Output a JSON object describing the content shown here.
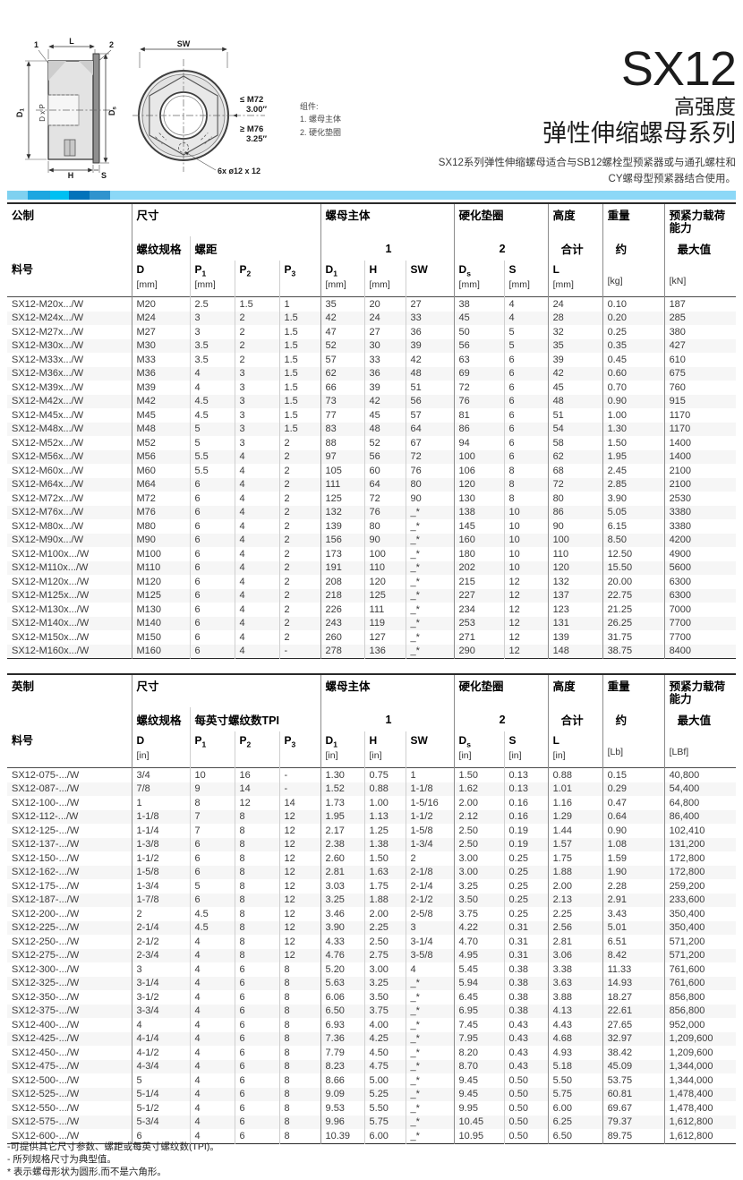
{
  "header": {
    "product": "SX12",
    "subtitle1": "高强度",
    "subtitle2": "弹性伸缩螺母系列",
    "desc_line1": "SX12系列弹性伸缩螺母适合与SB12螺栓型预紧器或与通孔螺柱和",
    "desc_line2": "CY螺母型预紧器结合使用。"
  },
  "drawings": {
    "legend_title": "组件:",
    "legend_item1": "1. 螺母主体",
    "legend_item2": "2. 硬化垫圈",
    "side": {
      "dim_l": "L",
      "callout1": "1",
      "callout2": "2",
      "dim_d1_main": "D",
      "dim_d1_sub": "1",
      "dim_dxp": "D x P",
      "dim_ds_main": "D",
      "dim_ds_sub": "s",
      "dim_h": "H",
      "dim_s": "S"
    },
    "front": {
      "dim_sw": "SW",
      "size_note1": "≤ M72",
      "size_note1_in": "3.00″",
      "size_note2": "≥ M76",
      "size_note2_in": "3.25″",
      "holes": "6x ø12 x 12"
    }
  },
  "accent": {
    "bar_colors": [
      "#7fd1f0",
      "#1ea6e0",
      "#00c0f2",
      "#0272ba",
      "#2f93ce",
      "#8cd8f7"
    ]
  },
  "metric": {
    "title": "公制",
    "col_group_dim": "尺寸",
    "col_thread": "螺纹规格",
    "col_pitch": "螺距",
    "group_nut": "螺母主体",
    "group_nut_num": "1",
    "group_washer": "硬化垫圈",
    "group_washer_num": "2",
    "group_height": "高度",
    "group_height_sub": "合计",
    "group_weight": "重量",
    "group_weight_sub": "约",
    "group_preload": "预紧力载荷能力",
    "group_preload_sub": "最大值",
    "part_no_label": "料号",
    "cols": [
      {
        "sym": "D",
        "sub": "",
        "unit": "[mm]"
      },
      {
        "sym": "P",
        "sub": "1",
        "unit": "[mm]"
      },
      {
        "sym": "P",
        "sub": "2",
        "unit": ""
      },
      {
        "sym": "P",
        "sub": "3",
        "unit": ""
      },
      {
        "sym": "D",
        "sub": "1",
        "unit": "[mm]"
      },
      {
        "sym": "H",
        "sub": "",
        "unit": "[mm]"
      },
      {
        "sym": "SW",
        "sub": "",
        "unit": ""
      },
      {
        "sym": "D",
        "sub": "s",
        "unit": "[mm]"
      },
      {
        "sym": "S",
        "sub": "",
        "unit": "[mm]"
      },
      {
        "sym": "L",
        "sub": "",
        "unit": "[mm]"
      },
      {
        "sym": "",
        "sub": "",
        "unit": "[kg]"
      },
      {
        "sym": "",
        "sub": "",
        "unit": "[kN]"
      }
    ],
    "rows": [
      [
        "SX12-M20x.../W",
        "M20",
        "2.5",
        "1.5",
        "1",
        "35",
        "20",
        "27",
        "38",
        "4",
        "24",
        "0.10",
        "187"
      ],
      [
        "SX12-M24x.../W",
        "M24",
        "3",
        "2",
        "1.5",
        "42",
        "24",
        "33",
        "45",
        "4",
        "28",
        "0.20",
        "285"
      ],
      [
        "SX12-M27x.../W",
        "M27",
        "3",
        "2",
        "1.5",
        "47",
        "27",
        "36",
        "50",
        "5",
        "32",
        "0.25",
        "380"
      ],
      [
        "SX12-M30x.../W",
        "M30",
        "3.5",
        "2",
        "1.5",
        "52",
        "30",
        "39",
        "56",
        "5",
        "35",
        "0.35",
        "427"
      ],
      [
        "SX12-M33x.../W",
        "M33",
        "3.5",
        "2",
        "1.5",
        "57",
        "33",
        "42",
        "63",
        "6",
        "39",
        "0.45",
        "610"
      ],
      [
        "SX12-M36x.../W",
        "M36",
        "4",
        "3",
        "1.5",
        "62",
        "36",
        "48",
        "69",
        "6",
        "42",
        "0.60",
        "675"
      ],
      [
        "SX12-M39x.../W",
        "M39",
        "4",
        "3",
        "1.5",
        "66",
        "39",
        "51",
        "72",
        "6",
        "45",
        "0.70",
        "760"
      ],
      [
        "SX12-M42x.../W",
        "M42",
        "4.5",
        "3",
        "1.5",
        "73",
        "42",
        "56",
        "76",
        "6",
        "48",
        "0.90",
        "915"
      ],
      [
        "SX12-M45x.../W",
        "M45",
        "4.5",
        "3",
        "1.5",
        "77",
        "45",
        "57",
        "81",
        "6",
        "51",
        "1.00",
        "1170"
      ],
      [
        "SX12-M48x.../W",
        "M48",
        "5",
        "3",
        "1.5",
        "83",
        "48",
        "64",
        "86",
        "6",
        "54",
        "1.30",
        "1170"
      ],
      [
        "SX12-M52x.../W",
        "M52",
        "5",
        "3",
        "2",
        "88",
        "52",
        "67",
        "94",
        "6",
        "58",
        "1.50",
        "1400"
      ],
      [
        "SX12-M56x.../W",
        "M56",
        "5.5",
        "4",
        "2",
        "97",
        "56",
        "72",
        "100",
        "6",
        "62",
        "1.95",
        "1400"
      ],
      [
        "SX12-M60x.../W",
        "M60",
        "5.5",
        "4",
        "2",
        "105",
        "60",
        "76",
        "106",
        "8",
        "68",
        "2.45",
        "2100"
      ],
      [
        "SX12-M64x.../W",
        "M64",
        "6",
        "4",
        "2",
        "111",
        "64",
        "80",
        "120",
        "8",
        "72",
        "2.85",
        "2100"
      ],
      [
        "SX12-M72x.../W",
        "M72",
        "6",
        "4",
        "2",
        "125",
        "72",
        "90",
        "130",
        "8",
        "80",
        "3.90",
        "2530"
      ],
      [
        "SX12-M76x.../W",
        "M76",
        "6",
        "4",
        "2",
        "132",
        "76",
        "_*",
        "138",
        "10",
        "86",
        "5.05",
        "3380"
      ],
      [
        "SX12-M80x.../W",
        "M80",
        "6",
        "4",
        "2",
        "139",
        "80",
        "_*",
        "145",
        "10",
        "90",
        "6.15",
        "3380"
      ],
      [
        "SX12-M90x.../W",
        "M90",
        "6",
        "4",
        "2",
        "156",
        "90",
        "_*",
        "160",
        "10",
        "100",
        "8.50",
        "4200"
      ],
      [
        "SX12-M100x.../W",
        "M100",
        "6",
        "4",
        "2",
        "173",
        "100",
        "_*",
        "180",
        "10",
        "110",
        "12.50",
        "4900"
      ],
      [
        "SX12-M110x.../W",
        "M110",
        "6",
        "4",
        "2",
        "191",
        "110",
        "_*",
        "202",
        "10",
        "120",
        "15.50",
        "5600"
      ],
      [
        "SX12-M120x.../W",
        "M120",
        "6",
        "4",
        "2",
        "208",
        "120",
        "_*",
        "215",
        "12",
        "132",
        "20.00",
        "6300"
      ],
      [
        "SX12-M125x.../W",
        "M125",
        "6",
        "4",
        "2",
        "218",
        "125",
        "_*",
        "227",
        "12",
        "137",
        "22.75",
        "6300"
      ],
      [
        "SX12-M130x.../W",
        "M130",
        "6",
        "4",
        "2",
        "226",
        "111",
        "_*",
        "234",
        "12",
        "123",
        "21.25",
        "7000"
      ],
      [
        "SX12-M140x.../W",
        "M140",
        "6",
        "4",
        "2",
        "243",
        "119",
        "_*",
        "253",
        "12",
        "131",
        "26.25",
        "7700"
      ],
      [
        "SX12-M150x.../W",
        "M150",
        "6",
        "4",
        "2",
        "260",
        "127",
        "_*",
        "271",
        "12",
        "139",
        "31.75",
        "7700"
      ],
      [
        "SX12-M160x.../W",
        "M160",
        "6",
        "4",
        "-",
        "278",
        "136",
        "_*",
        "290",
        "12",
        "148",
        "38.75",
        "8400"
      ]
    ]
  },
  "imperial": {
    "title": "英制",
    "col_group_dim": "尺寸",
    "col_thread": "螺纹规格",
    "col_pitch": "每英寸螺纹数TPI",
    "group_nut": "螺母主体",
    "group_nut_num": "1",
    "group_washer": "硬化垫圈",
    "group_washer_num": "2",
    "group_height": "高度",
    "group_height_sub": "合计",
    "group_weight": "重量",
    "group_weight_sub": "约",
    "group_preload": "预紧力载荷能力",
    "group_preload_sub": "最大值",
    "part_no_label": "料号",
    "cols": [
      {
        "sym": "D",
        "sub": "",
        "unit": "[in]"
      },
      {
        "sym": "P",
        "sub": "1",
        "unit": ""
      },
      {
        "sym": "P",
        "sub": "2",
        "unit": ""
      },
      {
        "sym": "P",
        "sub": "3",
        "unit": ""
      },
      {
        "sym": "D",
        "sub": "1",
        "unit": "[in]"
      },
      {
        "sym": "H",
        "sub": "",
        "unit": "[in]"
      },
      {
        "sym": "SW",
        "sub": "",
        "unit": ""
      },
      {
        "sym": "D",
        "sub": "s",
        "unit": "[in]"
      },
      {
        "sym": "S",
        "sub": "",
        "unit": "[in]"
      },
      {
        "sym": "L",
        "sub": "",
        "unit": "[in]"
      },
      {
        "sym": "",
        "sub": "",
        "unit": "[Lb]"
      },
      {
        "sym": "",
        "sub": "",
        "unit": "[LBf]"
      }
    ],
    "rows": [
      [
        "SX12-075-.../W",
        "3/4",
        "10",
        "16",
        "-",
        "1.30",
        "0.75",
        "1",
        "1.50",
        "0.13",
        "0.88",
        "0.15",
        "40,800"
      ],
      [
        "SX12-087-.../W",
        "7/8",
        "9",
        "14",
        "-",
        "1.52",
        "0.88",
        "1-1/8",
        "1.62",
        "0.13",
        "1.01",
        "0.29",
        "54,400"
      ],
      [
        "SX12-100-.../W",
        "1",
        "8",
        "12",
        "14",
        "1.73",
        "1.00",
        "1-5/16",
        "2.00",
        "0.16",
        "1.16",
        "0.47",
        "64,800"
      ],
      [
        "SX12-112-.../W",
        "1-1/8",
        "7",
        "8",
        "12",
        "1.95",
        "1.13",
        "1-1/2",
        "2.12",
        "0.16",
        "1.29",
        "0.64",
        "86,400"
      ],
      [
        "SX12-125-.../W",
        "1-1/4",
        "7",
        "8",
        "12",
        "2.17",
        "1.25",
        "1-5/8",
        "2.50",
        "0.19",
        "1.44",
        "0.90",
        "102,410"
      ],
      [
        "SX12-137-.../W",
        "1-3/8",
        "6",
        "8",
        "12",
        "2.38",
        "1.38",
        "1-3/4",
        "2.50",
        "0.19",
        "1.57",
        "1.08",
        "131,200"
      ],
      [
        "SX12-150-.../W",
        "1-1/2",
        "6",
        "8",
        "12",
        "2.60",
        "1.50",
        "2",
        "3.00",
        "0.25",
        "1.75",
        "1.59",
        "172,800"
      ],
      [
        "SX12-162-.../W",
        "1-5/8",
        "6",
        "8",
        "12",
        "2.81",
        "1.63",
        "2-1/8",
        "3.00",
        "0.25",
        "1.88",
        "1.90",
        "172,800"
      ],
      [
        "SX12-175-.../W",
        "1-3/4",
        "5",
        "8",
        "12",
        "3.03",
        "1.75",
        "2-1/4",
        "3.25",
        "0.25",
        "2.00",
        "2.28",
        "259,200"
      ],
      [
        "SX12-187-.../W",
        "1-7/8",
        "6",
        "8",
        "12",
        "3.25",
        "1.88",
        "2-1/2",
        "3.50",
        "0.25",
        "2.13",
        "2.91",
        "233,600"
      ],
      [
        "SX12-200-.../W",
        "2",
        "4.5",
        "8",
        "12",
        "3.46",
        "2.00",
        "2-5/8",
        "3.75",
        "0.25",
        "2.25",
        "3.43",
        "350,400"
      ],
      [
        "SX12-225-.../W",
        "2-1/4",
        "4.5",
        "8",
        "12",
        "3.90",
        "2.25",
        "3",
        "4.22",
        "0.31",
        "2.56",
        "5.01",
        "350,400"
      ],
      [
        "SX12-250-.../W",
        "2-1/2",
        "4",
        "8",
        "12",
        "4.33",
        "2.50",
        "3-1/4",
        "4.70",
        "0.31",
        "2.81",
        "6.51",
        "571,200"
      ],
      [
        "SX12-275-.../W",
        "2-3/4",
        "4",
        "8",
        "12",
        "4.76",
        "2.75",
        "3-5/8",
        "4.95",
        "0.31",
        "3.06",
        "8.42",
        "571,200"
      ],
      [
        "SX12-300-.../W",
        "3",
        "4",
        "6",
        "8",
        "5.20",
        "3.00",
        "4",
        "5.45",
        "0.38",
        "3.38",
        "11.33",
        "761,600"
      ],
      [
        "SX12-325-.../W",
        "3-1/4",
        "4",
        "6",
        "8",
        "5.63",
        "3.25",
        "_*",
        "5.94",
        "0.38",
        "3.63",
        "14.93",
        "761,600"
      ],
      [
        "SX12-350-.../W",
        "3-1/2",
        "4",
        "6",
        "8",
        "6.06",
        "3.50",
        "_*",
        "6.45",
        "0.38",
        "3.88",
        "18.27",
        "856,800"
      ],
      [
        "SX12-375-.../W",
        "3-3/4",
        "4",
        "6",
        "8",
        "6.50",
        "3.75",
        "_*",
        "6.95",
        "0.38",
        "4.13",
        "22.61",
        "856,800"
      ],
      [
        "SX12-400-.../W",
        "4",
        "4",
        "6",
        "8",
        "6.93",
        "4.00",
        "_*",
        "7.45",
        "0.43",
        "4.43",
        "27.65",
        "952,000"
      ],
      [
        "SX12-425-.../W",
        "4-1/4",
        "4",
        "6",
        "8",
        "7.36",
        "4.25",
        "_*",
        "7.95",
        "0.43",
        "4.68",
        "32.97",
        "1,209,600"
      ],
      [
        "SX12-450-.../W",
        "4-1/2",
        "4",
        "6",
        "8",
        "7.79",
        "4.50",
        "_*",
        "8.20",
        "0.43",
        "4.93",
        "38.42",
        "1,209,600"
      ],
      [
        "SX12-475-.../W",
        "4-3/4",
        "4",
        "6",
        "8",
        "8.23",
        "4.75",
        "_*",
        "8.70",
        "0.43",
        "5.18",
        "45.09",
        "1,344,000"
      ],
      [
        "SX12-500-.../W",
        "5",
        "4",
        "6",
        "8",
        "8.66",
        "5.00",
        "_*",
        "9.45",
        "0.50",
        "5.50",
        "53.75",
        "1,344,000"
      ],
      [
        "SX12-525-.../W",
        "5-1/4",
        "4",
        "6",
        "8",
        "9.09",
        "5.25",
        "_*",
        "9.45",
        "0.50",
        "5.75",
        "60.81",
        "1,478,400"
      ],
      [
        "SX12-550-.../W",
        "5-1/2",
        "4",
        "6",
        "8",
        "9.53",
        "5.50",
        "_*",
        "9.95",
        "0.50",
        "6.00",
        "69.67",
        "1,478,400"
      ],
      [
        "SX12-575-.../W",
        "5-3/4",
        "4",
        "6",
        "8",
        "9.96",
        "5.75",
        "_*",
        "10.45",
        "0.50",
        "6.25",
        "79.37",
        "1,612,800"
      ],
      [
        "SX12-600-.../W",
        "6",
        "4",
        "6",
        "8",
        "10.39",
        "6.00",
        "_*",
        "10.95",
        "0.50",
        "6.50",
        "89.75",
        "1,612,800"
      ]
    ]
  },
  "footnotes": [
    "-可提供其它尺寸参数、螺距或每英寸螺纹数(TPI)。",
    "- 所列规格尺寸为典型值。",
    "* 表示螺母形状为圆形,而不是六角形。"
  ]
}
